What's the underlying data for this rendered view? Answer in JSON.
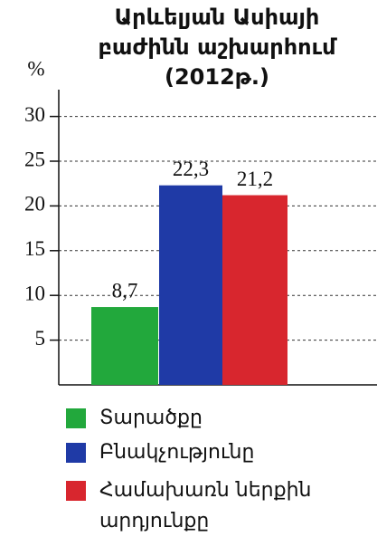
{
  "chart_data": {
    "type": "bar",
    "title": [
      "Արևելյան Ասիայի",
      "բաժինն աշխարհում",
      "(2012թ.)"
    ],
    "y_label": "%",
    "categories": [
      "Տարածքը",
      "Բնակչությունը",
      "Համախառն ներքին արդյունքը"
    ],
    "values": [
      8.7,
      22.3,
      21.2
    ],
    "value_labels": [
      "8,7",
      "22,3",
      "21,2"
    ],
    "colors": [
      "#22a83c",
      "#1f3aa6",
      "#d8262e"
    ],
    "ylim": [
      0,
      33
    ],
    "yticks": [
      5,
      10,
      15,
      20,
      25,
      30
    ],
    "grid": true
  }
}
